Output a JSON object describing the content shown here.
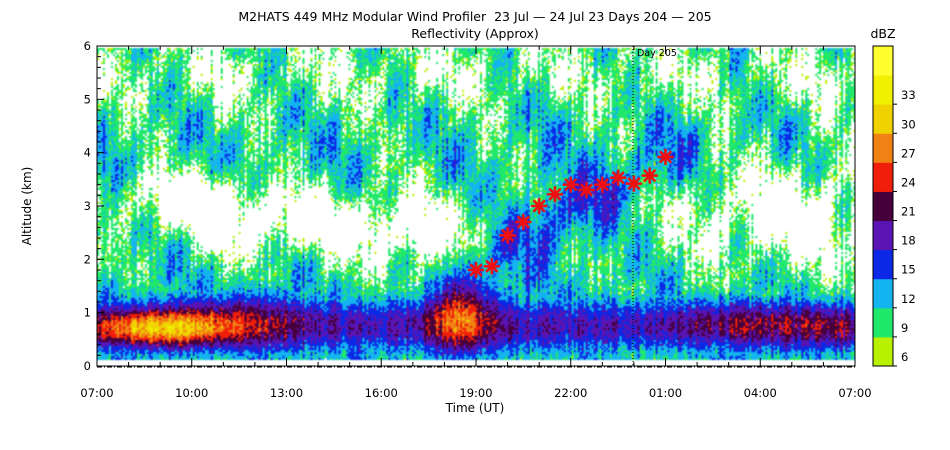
{
  "chart_data": {
    "type": "heatmap",
    "title": "M2HATS 449 MHz Modular Wind Profiler  23 Jul — 24 Jul 23 Days 204 — 205",
    "subtitle": "Reflectivity (Approx)",
    "xlabel": "Time (UT)",
    "ylabel": "Altitude (km)",
    "x_tick_labels": [
      "07:00",
      "10:00",
      "13:00",
      "16:00",
      "19:00",
      "22:00",
      "01:00",
      "04:00",
      "07:00"
    ],
    "x_ticks_hours": [
      7,
      10,
      13,
      16,
      19,
      22,
      25,
      28,
      31
    ],
    "xlim_hours": [
      7,
      31
    ],
    "ylim": [
      0,
      6
    ],
    "y_ticks": [
      0,
      1,
      2,
      3,
      4,
      5,
      6
    ],
    "day_marker": {
      "label": "Day 205",
      "hour": 24
    },
    "colorbar": {
      "unit": "dBZ",
      "ticks": [
        6,
        9,
        12,
        15,
        18,
        21,
        24,
        27,
        30,
        33
      ],
      "colors": [
        "#b9f000",
        "#1fe86a",
        "#14b4f0",
        "#0a28e6",
        "#5a14b4",
        "#46003c",
        "#f01e0a",
        "#f08214",
        "#f0d200",
        "#f0f000",
        "#ffff30"
      ]
    },
    "markers": {
      "color": "#ee1111",
      "points": [
        {
          "time": 19.0,
          "altitude": 1.8
        },
        {
          "time": 19.5,
          "altitude": 1.87
        },
        {
          "time": 20.0,
          "altitude": 2.45
        },
        {
          "time": 20.5,
          "altitude": 2.7
        },
        {
          "time": 21.0,
          "altitude": 3.0
        },
        {
          "time": 21.5,
          "altitude": 3.22
        },
        {
          "time": 22.0,
          "altitude": 3.4
        },
        {
          "time": 22.5,
          "altitude": 3.3
        },
        {
          "time": 23.0,
          "altitude": 3.4
        },
        {
          "time": 23.5,
          "altitude": 3.53
        },
        {
          "time": 24.0,
          "altitude": 3.42
        },
        {
          "time": 24.5,
          "altitude": 3.57
        },
        {
          "time": 25.0,
          "altitude": 3.92
        }
      ]
    }
  }
}
